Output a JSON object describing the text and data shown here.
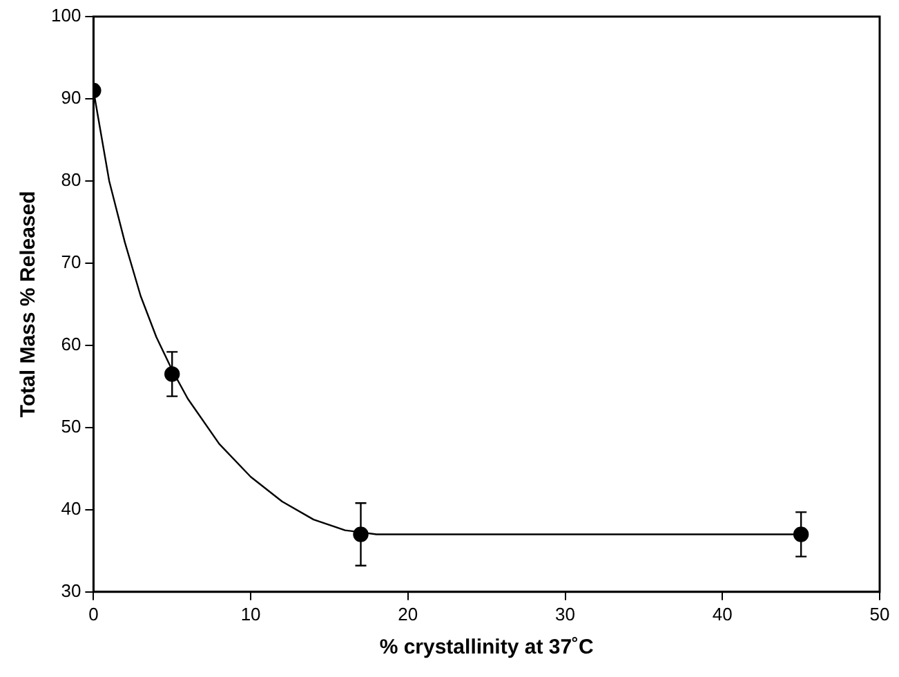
{
  "chart_data": {
    "type": "scatter",
    "xlabel": "% crystallinity at 37˚C",
    "ylabel": "Total Mass % Released",
    "xlim": [
      0,
      50
    ],
    "xticks": [
      0,
      10,
      20,
      30,
      40,
      50
    ],
    "ylim": [
      30,
      100
    ],
    "yticks": [
      30,
      40,
      50,
      60,
      70,
      80,
      90,
      100
    ],
    "grid": false,
    "legend": false,
    "marker": "circle",
    "series": [
      {
        "type": "scatter",
        "color": "#000000",
        "x": [
          0,
          5,
          17,
          45
        ],
        "values": [
          91,
          56.5,
          37,
          37
        ],
        "errors": [
          null,
          [
            53.8,
            59.2
          ],
          [
            33.2,
            40.8
          ],
          [
            34.3,
            39.7
          ]
        ]
      },
      {
        "type": "line",
        "color": "#000000",
        "marker": "none",
        "line_style": "solid",
        "x": [
          0,
          1,
          2,
          3,
          4,
          5,
          6,
          8,
          10,
          12,
          14,
          16,
          18,
          45
        ],
        "values": [
          91,
          80,
          72.5,
          66,
          61,
          57,
          53.5,
          48,
          44,
          41,
          38.8,
          37.5,
          37,
          37
        ]
      }
    ]
  }
}
